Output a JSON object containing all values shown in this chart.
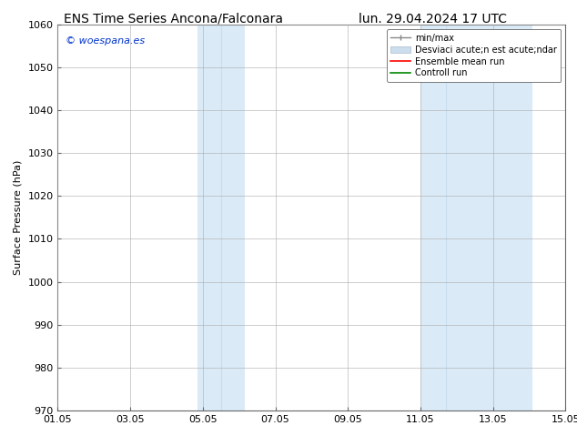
{
  "title_left": "ENS Time Series Ancona/Falconara",
  "title_right": "lun. 29.04.2024 17 UTC",
  "ylabel": "Surface Pressure (hPa)",
  "watermark": "© woespana.es",
  "ylim": [
    970,
    1060
  ],
  "yticks": [
    970,
    980,
    990,
    1000,
    1010,
    1020,
    1030,
    1040,
    1050,
    1060
  ],
  "xlim": [
    0,
    14
  ],
  "xtick_labels": [
    "01.05",
    "03.05",
    "05.05",
    "07.05",
    "09.05",
    "11.05",
    "13.05",
    "15.05"
  ],
  "xtick_positions": [
    0,
    2,
    4,
    6,
    8,
    10,
    12,
    14
  ],
  "shaded_regions": [
    {
      "x_start": 3.85,
      "x_end": 4.5,
      "color": "#daeaf7"
    },
    {
      "x_start": 4.5,
      "x_end": 5.15,
      "color": "#daeaf7"
    },
    {
      "x_start": 10.0,
      "x_end": 10.7,
      "color": "#daeaf7"
    },
    {
      "x_start": 10.7,
      "x_end": 13.1,
      "color": "#daeaf7"
    }
  ],
  "legend_label_minmax": "min/max",
  "legend_label_std": "Desviaci acute;n est acute;ndar",
  "legend_label_ens": "Ensemble mean run",
  "legend_label_ctrl": "Controll run",
  "minmax_color": "#888888",
  "std_facecolor": "#ccddee",
  "std_edgecolor": "#aabbcc",
  "ens_color": "#ff0000",
  "ctrl_color": "#008800",
  "bg_color": "#ffffff",
  "plot_bg_color": "#ffffff",
  "grid_color": "#aaaaaa",
  "watermark_color": "#0033cc",
  "title_fontsize": 10,
  "axis_label_fontsize": 8,
  "tick_fontsize": 8,
  "legend_fontsize": 7,
  "watermark_fontsize": 8
}
